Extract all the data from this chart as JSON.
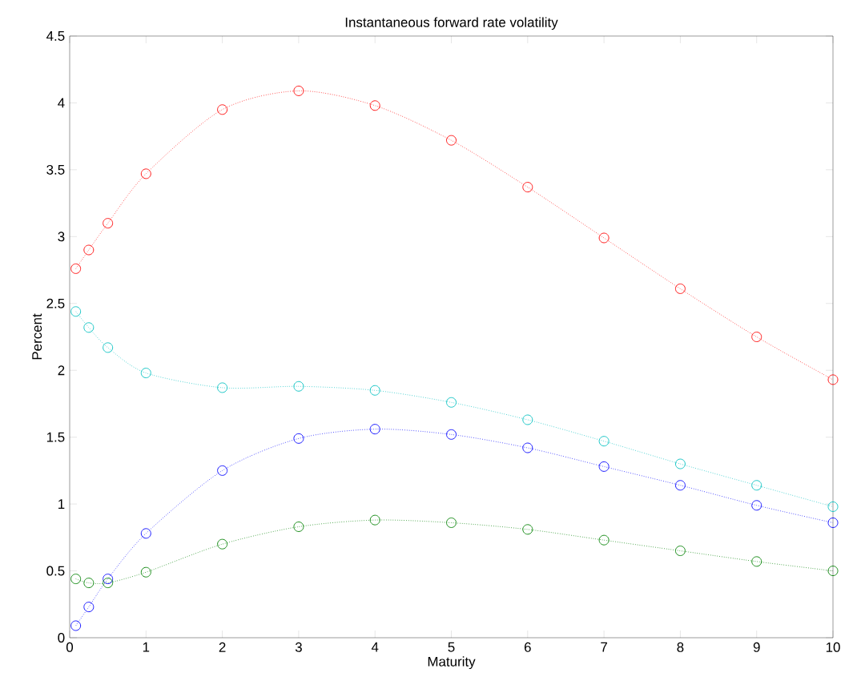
{
  "chart_data": {
    "type": "line",
    "title": "Instantaneous forward rate volatility",
    "xlabel": "Maturity",
    "ylabel": "Percent",
    "x": [
      0.08,
      0.25,
      0.5,
      1,
      2,
      3,
      4,
      5,
      6,
      7,
      8,
      9,
      10
    ],
    "series": [
      {
        "color": "#ff0000",
        "values": [
          2.76,
          2.9,
          3.1,
          3.47,
          3.95,
          4.09,
          3.98,
          3.72,
          3.37,
          2.99,
          2.61,
          2.25,
          1.93
        ]
      },
      {
        "color": "#00bfbf",
        "values": [
          2.44,
          2.32,
          2.17,
          1.98,
          1.87,
          1.88,
          1.85,
          1.76,
          1.63,
          1.47,
          1.3,
          1.14,
          0.98
        ]
      },
      {
        "color": "#0000ff",
        "values": [
          0.09,
          0.23,
          0.44,
          0.78,
          1.25,
          1.49,
          1.56,
          1.52,
          1.42,
          1.28,
          1.14,
          0.99,
          0.86
        ]
      },
      {
        "color": "#008000",
        "values": [
          0.44,
          0.41,
          0.41,
          0.49,
          0.7,
          0.83,
          0.88,
          0.86,
          0.81,
          0.73,
          0.65,
          0.57,
          0.5
        ]
      }
    ],
    "xlim": [
      0,
      10
    ],
    "ylim": [
      0,
      4.5
    ],
    "xticks": [
      0,
      1,
      2,
      3,
      4,
      5,
      6,
      7,
      8,
      9,
      10
    ],
    "yticks": [
      0,
      0.5,
      1,
      1.5,
      2,
      2.5,
      3,
      3.5,
      4,
      4.5
    ],
    "grid": false,
    "marker": "circle",
    "line_style": "dotted"
  }
}
